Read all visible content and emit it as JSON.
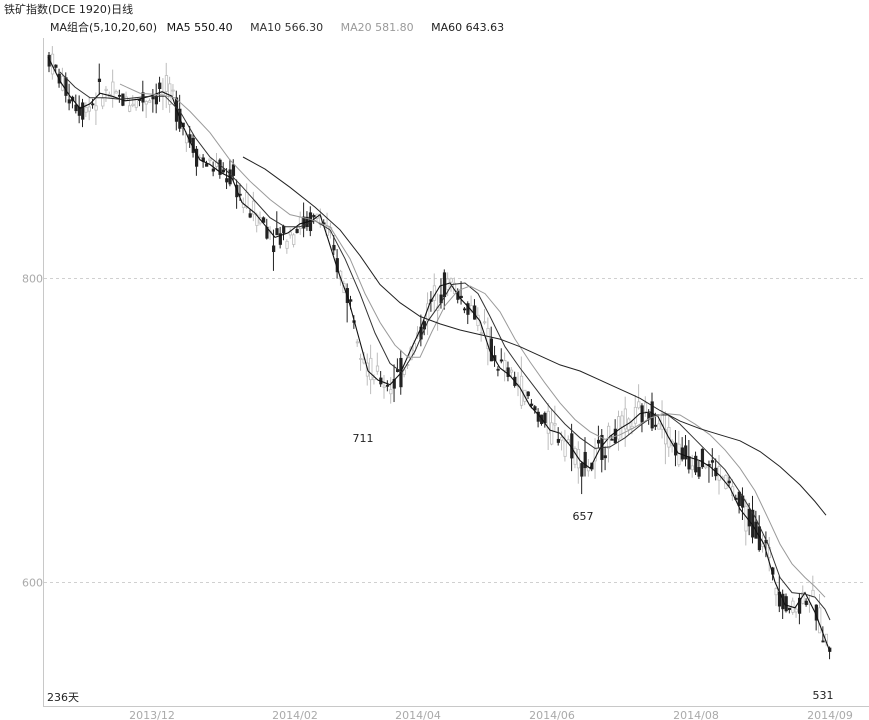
{
  "header": {
    "title": "铁矿指数(DCE 1920)日线",
    "ma_group": "MA组合(5,10,20,60)",
    "ma5": "MA5 550.40",
    "ma10": "MA10 566.30",
    "ma20": "MA20 581.80",
    "ma60": "MA60 643.63"
  },
  "footer": {
    "days": "236天"
  },
  "colors": {
    "ma5": "#111111",
    "ma10": "#333333",
    "ma20": "#9a9a9a",
    "ma60": "#222222",
    "grid": "#d0d0d0",
    "label": "#aaaaaa"
  },
  "chart_data": {
    "type": "candlestick",
    "ylim": [
      517,
      961
    ],
    "y_ticks": [
      600,
      800
    ],
    "x_tick_labels": [
      "2013/12",
      "2014/02",
      "2014/04",
      "2014/06",
      "2014/08",
      "2014/09"
    ],
    "annotations": [
      {
        "text": "711",
        "value": 711
      },
      {
        "text": "657",
        "value": 657
      },
      {
        "text": "531",
        "value": 531
      }
    ],
    "ma_lines": [
      {
        "name": "MA5",
        "points": [
          [
            48,
            946
          ],
          [
            60,
            930
          ],
          [
            70,
            920
          ],
          [
            80,
            912
          ],
          [
            90,
            915
          ],
          [
            100,
            922
          ],
          [
            112,
            920
          ],
          [
            125,
            917
          ],
          [
            138,
            918
          ],
          [
            150,
            920
          ],
          [
            162,
            923
          ],
          [
            172,
            920
          ],
          [
            180,
            905
          ],
          [
            190,
            890
          ],
          [
            200,
            878
          ],
          [
            210,
            875
          ],
          [
            220,
            870
          ],
          [
            232,
            866
          ],
          [
            242,
            850
          ],
          [
            255,
            843
          ],
          [
            265,
            835
          ],
          [
            275,
            827
          ],
          [
            288,
            830
          ],
          [
            300,
            836
          ],
          [
            312,
            838
          ],
          [
            320,
            842
          ],
          [
            328,
            826
          ],
          [
            338,
            805
          ],
          [
            348,
            787
          ],
          [
            358,
            763
          ],
          [
            368,
            739
          ],
          [
            378,
            733
          ],
          [
            390,
            730
          ],
          [
            400,
            737
          ],
          [
            410,
            752
          ],
          [
            420,
            766
          ],
          [
            430,
            784
          ],
          [
            440,
            795
          ],
          [
            450,
            797
          ],
          [
            460,
            787
          ],
          [
            470,
            780
          ],
          [
            480,
            772
          ],
          [
            490,
            752
          ],
          [
            500,
            741
          ],
          [
            510,
            736
          ],
          [
            520,
            728
          ],
          [
            530,
            716
          ],
          [
            540,
            709
          ],
          [
            550,
            700
          ],
          [
            560,
            698
          ],
          [
            570,
            690
          ],
          [
            580,
            680
          ],
          [
            590,
            675
          ],
          [
            600,
            688
          ],
          [
            610,
            696
          ],
          [
            620,
            701
          ],
          [
            630,
            705
          ],
          [
            640,
            711
          ],
          [
            650,
            712
          ],
          [
            658,
            709
          ],
          [
            668,
            696
          ],
          [
            678,
            685
          ],
          [
            690,
            682
          ],
          [
            700,
            680
          ],
          [
            710,
            676
          ],
          [
            720,
            670
          ],
          [
            730,
            662
          ],
          [
            740,
            648
          ],
          [
            752,
            638
          ],
          [
            764,
            625
          ],
          [
            775,
            600
          ],
          [
            785,
            585
          ],
          [
            795,
            583
          ],
          [
            805,
            593
          ],
          [
            815,
            580
          ],
          [
            822,
            568
          ],
          [
            830,
            554
          ]
        ]
      },
      {
        "name": "MA10",
        "points": [
          [
            60,
            936
          ],
          [
            75,
            926
          ],
          [
            90,
            919
          ],
          [
            105,
            919
          ],
          [
            120,
            918
          ],
          [
            135,
            919
          ],
          [
            150,
            920
          ],
          [
            165,
            920
          ],
          [
            180,
            910
          ],
          [
            195,
            893
          ],
          [
            210,
            880
          ],
          [
            225,
            872
          ],
          [
            240,
            862
          ],
          [
            255,
            851
          ],
          [
            270,
            840
          ],
          [
            285,
            834
          ],
          [
            300,
            834
          ],
          [
            315,
            838
          ],
          [
            330,
            832
          ],
          [
            345,
            813
          ],
          [
            360,
            790
          ],
          [
            375,
            764
          ],
          [
            390,
            744
          ],
          [
            402,
            738
          ],
          [
            415,
            752
          ],
          [
            428,
            772
          ],
          [
            440,
            783
          ],
          [
            452,
            796
          ],
          [
            465,
            797
          ],
          [
            478,
            790
          ],
          [
            490,
            775
          ],
          [
            505,
            755
          ],
          [
            520,
            741
          ],
          [
            535,
            728
          ],
          [
            550,
            715
          ],
          [
            565,
            704
          ],
          [
            580,
            695
          ],
          [
            595,
            688
          ],
          [
            610,
            689
          ],
          [
            625,
            695
          ],
          [
            640,
            703
          ],
          [
            655,
            710
          ],
          [
            668,
            710
          ],
          [
            680,
            704
          ],
          [
            695,
            694
          ],
          [
            710,
            684
          ],
          [
            725,
            674
          ],
          [
            740,
            659
          ],
          [
            755,
            643
          ],
          [
            768,
            625
          ],
          [
            780,
            603
          ],
          [
            792,
            593
          ],
          [
            805,
            592
          ],
          [
            815,
            590
          ],
          [
            825,
            582
          ],
          [
            830,
            575
          ]
        ]
      },
      {
        "name": "MA20",
        "points": [
          [
            120,
            928
          ],
          [
            140,
            922
          ],
          [
            160,
            921
          ],
          [
            175,
            919
          ],
          [
            190,
            910
          ],
          [
            210,
            896
          ],
          [
            230,
            878
          ],
          [
            250,
            864
          ],
          [
            270,
            852
          ],
          [
            290,
            842
          ],
          [
            310,
            839
          ],
          [
            330,
            834
          ],
          [
            350,
            813
          ],
          [
            365,
            790
          ],
          [
            380,
            771
          ],
          [
            395,
            756
          ],
          [
            408,
            748
          ],
          [
            420,
            748
          ],
          [
            432,
            765
          ],
          [
            445,
            782
          ],
          [
            458,
            792
          ],
          [
            470,
            795
          ],
          [
            485,
            790
          ],
          [
            500,
            778
          ],
          [
            515,
            760
          ],
          [
            530,
            745
          ],
          [
            545,
            731
          ],
          [
            560,
            718
          ],
          [
            575,
            707
          ],
          [
            590,
            699
          ],
          [
            605,
            694
          ],
          [
            620,
            697
          ],
          [
            635,
            702
          ],
          [
            650,
            708
          ],
          [
            665,
            711
          ],
          [
            680,
            710
          ],
          [
            695,
            704
          ],
          [
            710,
            697
          ],
          [
            725,
            687
          ],
          [
            740,
            675
          ],
          [
            755,
            660
          ],
          [
            768,
            642
          ],
          [
            780,
            625
          ],
          [
            792,
            612
          ],
          [
            805,
            603
          ],
          [
            815,
            597
          ],
          [
            825,
            590
          ]
        ]
      },
      {
        "name": "MA60",
        "points": [
          [
            243,
            880
          ],
          [
            265,
            872
          ],
          [
            290,
            860
          ],
          [
            315,
            847
          ],
          [
            340,
            832
          ],
          [
            360,
            815
          ],
          [
            380,
            796
          ],
          [
            400,
            784
          ],
          [
            420,
            775
          ],
          [
            440,
            770
          ],
          [
            460,
            766
          ],
          [
            480,
            763
          ],
          [
            500,
            760
          ],
          [
            520,
            755
          ],
          [
            540,
            749
          ],
          [
            560,
            743
          ],
          [
            580,
            739
          ],
          [
            600,
            733
          ],
          [
            620,
            727
          ],
          [
            640,
            721
          ],
          [
            660,
            713
          ],
          [
            680,
            706
          ],
          [
            700,
            701
          ],
          [
            720,
            697
          ],
          [
            740,
            693
          ],
          [
            760,
            686
          ],
          [
            780,
            676
          ],
          [
            800,
            664
          ],
          [
            815,
            653
          ],
          [
            826,
            644
          ]
        ]
      }
    ]
  }
}
